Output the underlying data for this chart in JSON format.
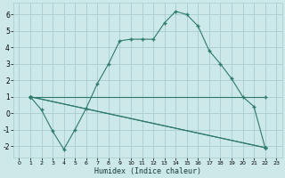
{
  "xlabel": "Humidex (Indice chaleur)",
  "background_color": "#cce8e8",
  "grid_color": "#aacccc",
  "line_color": "#2d7a6a",
  "xlim": [
    -0.5,
    23.5
  ],
  "ylim": [
    -2.7,
    6.7
  ],
  "xticks": [
    0,
    1,
    2,
    3,
    4,
    5,
    6,
    7,
    8,
    9,
    10,
    11,
    12,
    13,
    14,
    15,
    16,
    17,
    18,
    19,
    20,
    21,
    22,
    23
  ],
  "yticks": [
    -2,
    -1,
    0,
    1,
    2,
    3,
    4,
    5,
    6
  ],
  "line1_x": [
    1,
    2,
    3,
    4,
    5,
    6,
    7,
    8,
    9,
    10,
    11,
    12,
    13,
    14,
    15,
    16,
    17,
    18,
    19,
    20,
    21,
    22
  ],
  "line1_y": [
    1.0,
    0.2,
    -1.1,
    -2.2,
    -1.0,
    0.3,
    1.8,
    3.0,
    4.4,
    4.5,
    4.5,
    4.5,
    5.5,
    6.2,
    6.0,
    5.3,
    3.8,
    3.0,
    2.1,
    1.0,
    0.4,
    -2.1
  ],
  "line2_x": [
    1,
    22
  ],
  "line2_y": [
    1.0,
    -2.1
  ],
  "line3_x": [
    1,
    22
  ],
  "line3_y": [
    1.0,
    1.0
  ],
  "line4_x": [
    1,
    22
  ],
  "line4_y": [
    1.0,
    -2.1
  ]
}
